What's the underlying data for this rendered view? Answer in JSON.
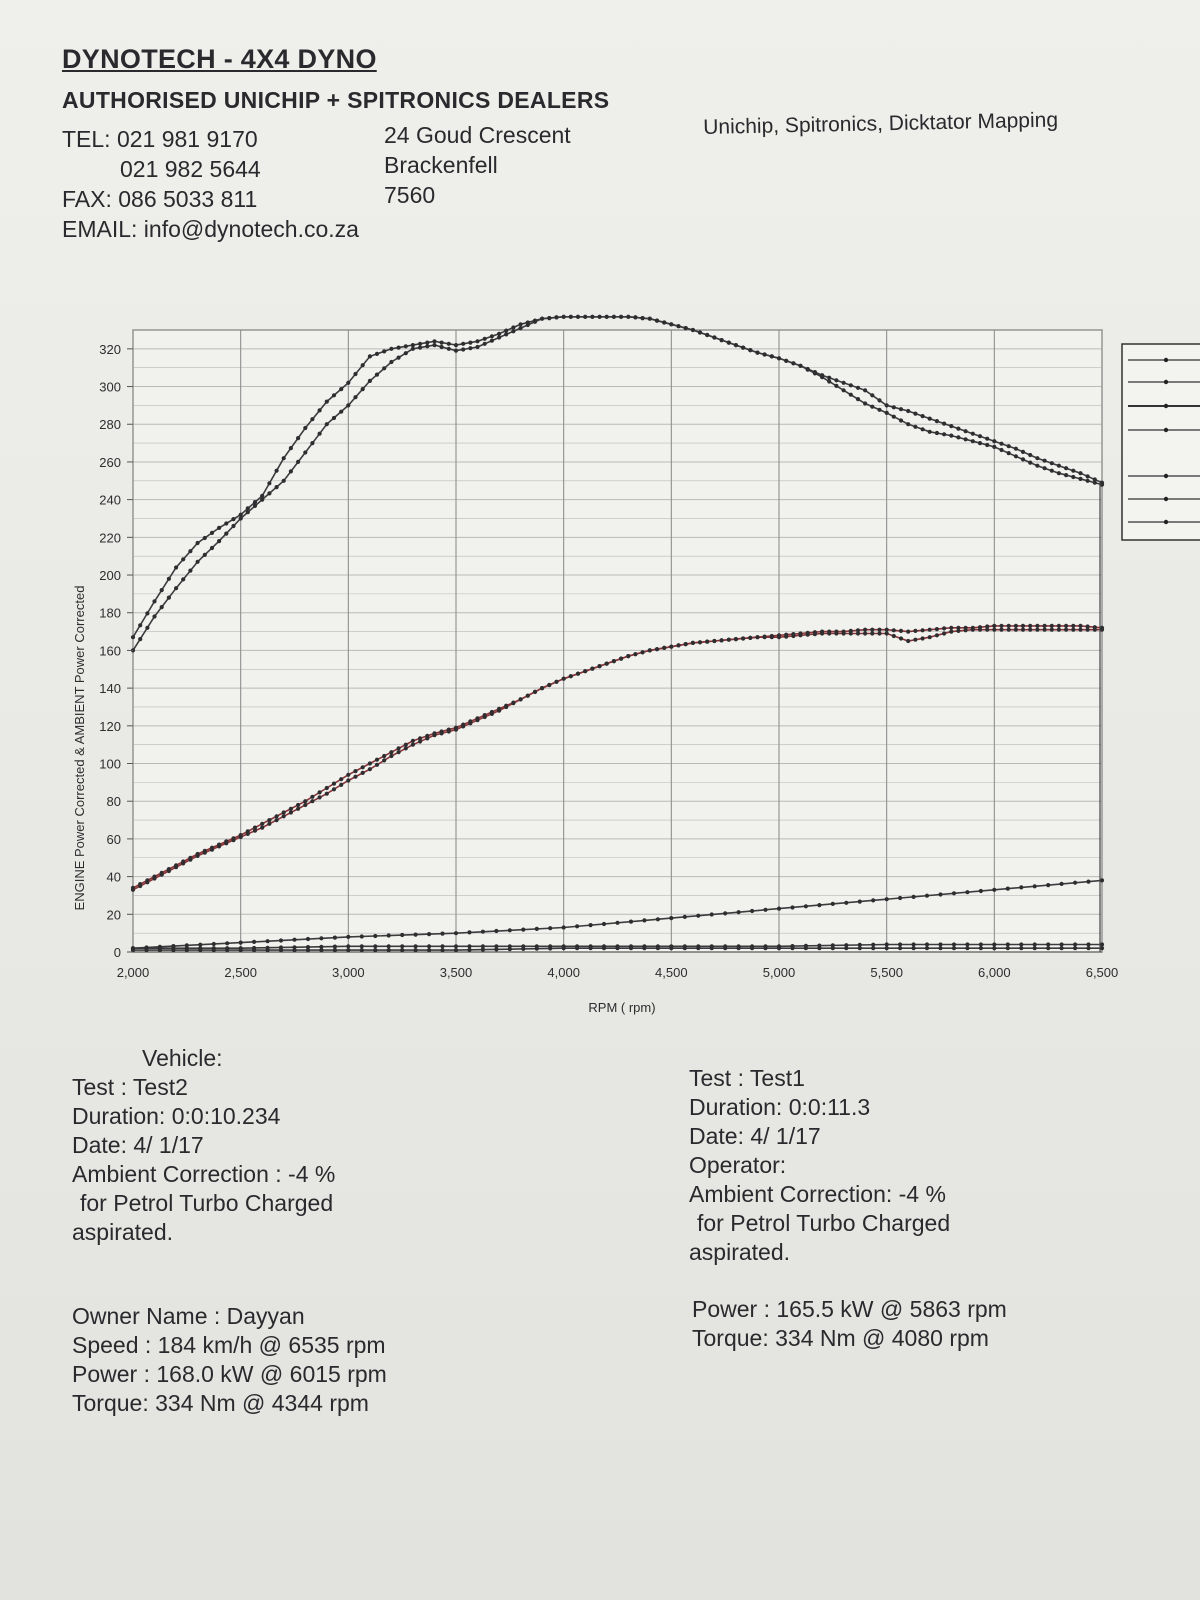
{
  "header": {
    "company": "DYNOTECH - 4X4 DYNO",
    "dealers": "AUTHORISED UNICHIP + SPITRONICS DEALERS",
    "tel_1": "TEL: 021 981 9170",
    "tel_2": "021 982 5644",
    "fax": "FAX: 086 5033 811",
    "email": "EMAIL: info@dynotech.co.za",
    "address_1": "24 Goud Crescent",
    "address_2": "Brackenfell",
    "address_3": "7560",
    "services": "Unichip, Spitronics, Dicktator Mapping"
  },
  "test2": {
    "vehicle": "Vehicle:",
    "test": "Test    : Test2",
    "duration": "Duration: 0:0:10.234",
    "date": "Date:  4/ 1/17",
    "ambient": "Ambient Correction : -4 %",
    "fuel": "for Petrol Turbo Charged",
    "aspiration": "aspirated.",
    "owner": "Owner Name : Dayyan",
    "speed": "Speed : 184 km/h @ 6535 rpm",
    "power": "Power : 168.0 kW @ 6015 rpm",
    "torque": "Torque: 334 Nm @ 4344 rpm"
  },
  "test1": {
    "test": "Test    : Test1",
    "duration": "Duration: 0:0:11.3",
    "date": "Date:  4/ 1/17",
    "operator": "Operator:",
    "ambient": "Ambient Correction: -4 %",
    "fuel": "for Petrol Turbo Charged",
    "aspiration": "aspirated.",
    "power": "Power : 165.5 kW @ 5863 rpm",
    "torque": "Torque: 334 Nm @ 4080 rpm"
  },
  "colors": {
    "grid": "#b9b9b9",
    "series_dark": "#3c3c3e",
    "series_red": "#8a3438",
    "paper": "#ececE8"
  },
  "chart_data": {
    "type": "line",
    "xlabel": "RPM ( rpm)",
    "ylabel": "ENGINE Power Corrected & AMBIENT Power Corrected",
    "xlim": [
      2000,
      6500
    ],
    "ylim": [
      0,
      330
    ],
    "x_ticks": [
      "2,000",
      "2,500",
      "3,000",
      "3,500",
      "4,000",
      "4,500",
      "5,000",
      "5,500",
      "6,000",
      "6,500"
    ],
    "y_ticks": [
      "0",
      "20",
      "40",
      "60",
      "80",
      "100",
      "120",
      "140",
      "160",
      "180",
      "200",
      "220",
      "240",
      "260",
      "280",
      "300",
      "320"
    ],
    "grid": true,
    "legend_position": "right",
    "series": [
      {
        "color": "#3c3c3e",
        "x": [
          2000,
          2100,
          2200,
          2300,
          2400,
          2500,
          2600,
          2700,
          2800,
          2900,
          3000,
          3100,
          3200,
          3300,
          3400,
          3500,
          3600,
          3700,
          3800,
          3900,
          4000,
          4100,
          4200,
          4300,
          4400,
          4500,
          4600,
          4700,
          4800,
          4900,
          5000,
          5100,
          5200,
          5300,
          5400,
          5500,
          5600,
          5700,
          5800,
          5900,
          6000,
          6100,
          6200,
          6300,
          6400,
          6500
        ],
        "y": [
          167,
          186,
          204,
          217,
          225,
          232,
          242,
          262,
          278,
          292,
          302,
          316,
          320,
          322,
          324,
          322,
          324,
          328,
          333,
          336,
          337,
          337,
          337,
          337,
          336,
          333,
          330,
          326,
          322,
          318,
          315,
          311,
          306,
          302,
          298,
          290,
          287,
          283,
          279,
          275,
          271,
          267,
          262,
          258,
          254,
          249
        ]
      },
      {
        "color": "#3c3c3e",
        "x": [
          2000,
          2100,
          2200,
          2300,
          2400,
          2500,
          2600,
          2700,
          2800,
          2900,
          3000,
          3100,
          3200,
          3300,
          3400,
          3500,
          3600,
          3700,
          3800,
          3900,
          4000,
          4100,
          4200,
          4300,
          4400,
          4500,
          4600,
          4700,
          4800,
          4900,
          5000,
          5100,
          5200,
          5300,
          5400,
          5500,
          5600,
          5700,
          5800,
          5900,
          6000,
          6100,
          6200,
          6300,
          6400,
          6500
        ],
        "y": [
          160,
          178,
          193,
          207,
          218,
          230,
          240,
          250,
          265,
          280,
          290,
          303,
          313,
          320,
          322,
          319,
          321,
          326,
          331,
          336,
          337,
          337,
          337,
          337,
          336,
          333,
          330,
          326,
          322,
          318,
          315,
          311,
          305,
          298,
          291,
          286,
          280,
          276,
          274,
          271,
          268,
          263,
          258,
          254,
          251,
          248
        ]
      },
      {
        "color": "#8a3438",
        "x": [
          2000,
          2100,
          2200,
          2300,
          2400,
          2500,
          2600,
          2700,
          2800,
          2900,
          3000,
          3100,
          3200,
          3300,
          3400,
          3500,
          3600,
          3700,
          3800,
          3900,
          4000,
          4100,
          4200,
          4300,
          4400,
          4500,
          4600,
          4700,
          4800,
          4900,
          5000,
          5100,
          5200,
          5300,
          5400,
          5500,
          5600,
          5700,
          5800,
          5900,
          6000,
          6100,
          6200,
          6300,
          6400,
          6500
        ],
        "y": [
          34,
          40,
          46,
          52,
          57,
          62,
          68,
          74,
          80,
          87,
          94,
          100,
          106,
          112,
          116,
          119,
          124,
          129,
          134,
          140,
          145,
          149,
          153,
          157,
          160,
          162,
          164,
          165,
          166,
          167,
          168,
          169,
          170,
          170,
          171,
          171,
          170,
          171,
          172,
          172,
          173,
          173,
          173,
          173,
          173,
          172
        ]
      },
      {
        "color": "#8a3438",
        "x": [
          2000,
          2100,
          2200,
          2300,
          2400,
          2500,
          2600,
          2700,
          2800,
          2900,
          3000,
          3100,
          3200,
          3300,
          3400,
          3500,
          3600,
          3700,
          3800,
          3900,
          4000,
          4100,
          4200,
          4300,
          4400,
          4500,
          4600,
          4700,
          4800,
          4900,
          5000,
          5100,
          5200,
          5300,
          5400,
          5500,
          5600,
          5700,
          5800,
          5900,
          6000,
          6100,
          6200,
          6300,
          6400,
          6500
        ],
        "y": [
          33,
          39,
          45,
          51,
          56,
          61,
          66,
          72,
          78,
          84,
          91,
          97,
          104,
          110,
          115,
          118,
          123,
          128,
          134,
          140,
          145,
          149,
          153,
          157,
          160,
          162,
          164,
          165,
          166,
          167,
          167,
          168,
          169,
          169,
          169,
          169,
          165,
          167,
          170,
          171,
          171,
          171,
          171,
          171,
          171,
          171
        ]
      },
      {
        "color": "#3c3c3e",
        "x": [
          2000,
          2500,
          3000,
          3500,
          4000,
          4500,
          5000,
          5500,
          6000,
          6500
        ],
        "y": [
          2,
          5,
          8,
          10,
          13,
          18,
          23,
          28,
          33,
          38
        ]
      },
      {
        "color": "#3c3c3e",
        "x": [
          2000,
          2500,
          3000,
          3500,
          4000,
          4500,
          5000,
          5500,
          6000,
          6500
        ],
        "y": [
          2,
          2,
          3,
          3,
          3,
          3,
          3,
          4,
          4,
          4
        ]
      },
      {
        "color": "#3c3c3e",
        "x": [
          2000,
          2500,
          3000,
          3500,
          4000,
          4500,
          5000,
          5500,
          6000,
          6500
        ],
        "y": [
          1,
          1,
          1,
          1,
          2,
          2,
          2,
          2,
          2,
          2
        ]
      }
    ]
  }
}
